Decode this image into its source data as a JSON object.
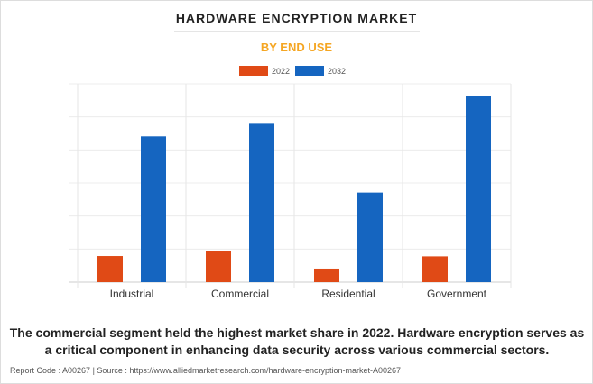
{
  "title": "HARDWARE ENCRYPTION MARKET",
  "subtitle": "BY END USE",
  "caption": "The commercial segment held the highest market share in 2022. Hardware encryption serves as a critical component in enhancing data security across various commercial sectors.",
  "footer": "Report Code : A00267  |  Source : https://www.alliedmarketresearch.com/hardware-encryption-market-A00267",
  "chart_data": {
    "type": "bar",
    "title": "HARDWARE ENCRYPTION MARKET",
    "subtitle": "BY END USE",
    "categories": [
      "Industrial",
      "Commercial",
      "Residential",
      "Government"
    ],
    "series": [
      {
        "name": "2022",
        "color": "#e04a16",
        "values": [
          0.79,
          0.93,
          0.41,
          0.78
        ]
      },
      {
        "name": "2032",
        "color": "#1565c0",
        "values": [
          4.41,
          4.79,
          2.71,
          5.64
        ]
      }
    ],
    "ylim": [
      0,
      6
    ],
    "y_ticks_labeled": false,
    "grid": true,
    "legend": "top-center",
    "xlabel": "",
    "ylabel": ""
  }
}
